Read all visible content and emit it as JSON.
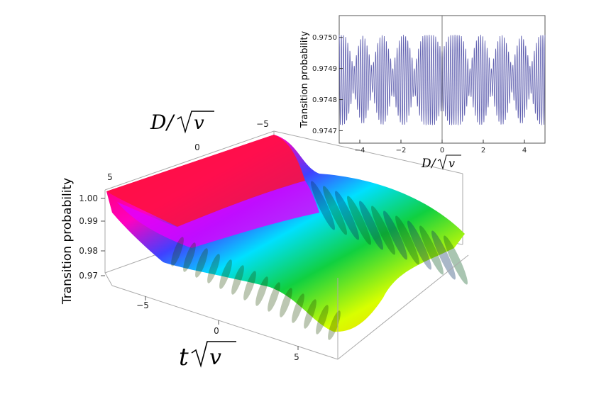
{
  "chart_data": [
    {
      "type": "surface",
      "zlabel": "Transition probability",
      "xlabel_math": {
        "var": "t",
        "radicand": "v"
      },
      "ylabel_math": {
        "var": "D",
        "slash": "/",
        "radicand": "v"
      },
      "x_ticks": [
        "−5",
        "0",
        "5"
      ],
      "y_ticks": [
        "−5",
        "0",
        "5"
      ],
      "z_ticks": [
        "1.00",
        "0.99",
        "0.98",
        "0.97"
      ],
      "xlim": [
        -8,
        8
      ],
      "ylim": [
        -6,
        6
      ],
      "zlim": [
        0.965,
        1.0
      ],
      "colormap": "hue (red-magenta-blue-cyan-green-yellow)"
    },
    {
      "type": "line",
      "ylabel": "Transition probability",
      "xlabel_math": {
        "var": "D",
        "slash": "/",
        "radicand": "v"
      },
      "x_ticks": [
        "−4",
        "−2",
        "0",
        "2",
        "4"
      ],
      "y_ticks": [
        "0.9747",
        "0.9748",
        "0.9749",
        "0.9750"
      ],
      "xlim": [
        -5,
        5
      ],
      "ylim": [
        0.97466,
        0.97507
      ],
      "center": 0.974863,
      "envelope_max": 0.000145,
      "envelope_min": 3.5e-05,
      "beat_node_positions": [
        -4.3,
        -3.4,
        -2.4,
        -1.35,
        1.35,
        2.4,
        3.4,
        4.3
      ],
      "line_color": "#6060b0",
      "grid": false
    }
  ]
}
